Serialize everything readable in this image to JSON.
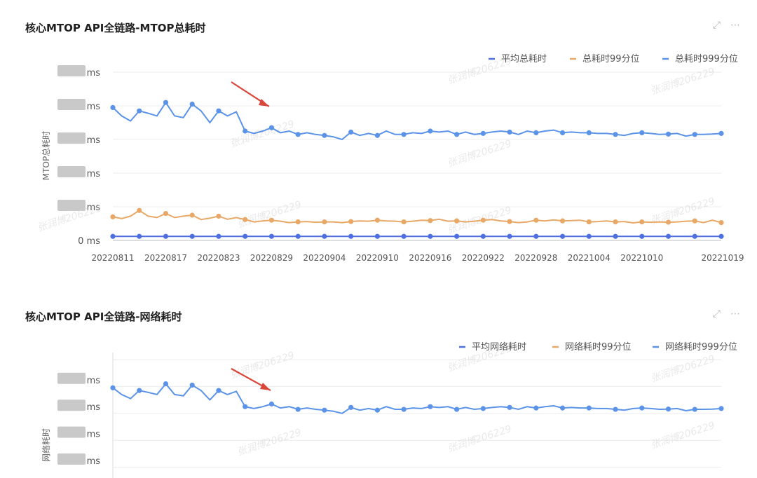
{
  "panels": [
    {
      "title": "核心MTOP API全链路-MTOP总耗时",
      "ylabel": "MTOP总耗时",
      "y_tick_unit": "ms",
      "y_ticks": [
        "0 ms",
        "ms",
        "ms",
        "ms",
        "ms",
        "ms"
      ],
      "expand_icon": "expand-icon",
      "more_icon": "more-icon"
    },
    {
      "title": "核心MTOP API全链路-网络耗时",
      "ylabel": "网络耗时",
      "y_tick_unit": "ms",
      "y_ticks": [
        "ms",
        "ms",
        "ms",
        "ms"
      ],
      "expand_icon": "expand-icon",
      "more_icon": "more-icon"
    }
  ],
  "watermark": "张润博206229",
  "arrow_color": "#d9463a",
  "chart_data": [
    {
      "type": "line",
      "title": "核心MTOP API全链路-MTOP总耗时",
      "ylabel": "MTOP总耗时",
      "xlabel": "",
      "x_tick_labels": [
        "20220811",
        "20220817",
        "20220823",
        "20220829",
        "20220904",
        "20220910",
        "20220916",
        "20220922",
        "20220928",
        "20221004",
        "20221010",
        "20221019"
      ],
      "ylim": [
        0,
        5
      ],
      "y_values_obscured": true,
      "grid": true,
      "legend_position": "top-right",
      "series": [
        {
          "name": "平均总耗时",
          "color": "#4d6fe0",
          "values": [
            0.12,
            0.12,
            0.12,
            0.12,
            0.12,
            0.12,
            0.12,
            0.12,
            0.12,
            0.12,
            0.12,
            0.12,
            0.12,
            0.12,
            0.12,
            0.12,
            0.12,
            0.12,
            0.12,
            0.12,
            0.12,
            0.12,
            0.12,
            0.12,
            0.12,
            0.12,
            0.12,
            0.12,
            0.12,
            0.12,
            0.12,
            0.12,
            0.12,
            0.12,
            0.12,
            0.12,
            0.12,
            0.12,
            0.12,
            0.12,
            0.12,
            0.12,
            0.12,
            0.12,
            0.12,
            0.12,
            0.12,
            0.12,
            0.12,
            0.12,
            0.12,
            0.12,
            0.12,
            0.12,
            0.12,
            0.12,
            0.12,
            0.12,
            0.12,
            0.12,
            0.12,
            0.12,
            0.12,
            0.12,
            0.12,
            0.12,
            0.12,
            0.12,
            0.12,
            0.12
          ]
        },
        {
          "name": "总耗时99分位",
          "color": "#e8a867",
          "values": [
            0.7,
            0.65,
            0.72,
            0.89,
            0.72,
            0.68,
            0.8,
            0.68,
            0.72,
            0.75,
            0.62,
            0.66,
            0.72,
            0.63,
            0.68,
            0.62,
            0.55,
            0.58,
            0.6,
            0.57,
            0.53,
            0.55,
            0.56,
            0.54,
            0.55,
            0.55,
            0.53,
            0.56,
            0.58,
            0.57,
            0.6,
            0.58,
            0.57,
            0.55,
            0.57,
            0.6,
            0.59,
            0.63,
            0.57,
            0.58,
            0.55,
            0.57,
            0.6,
            0.62,
            0.58,
            0.56,
            0.53,
            0.55,
            0.6,
            0.58,
            0.61,
            0.58,
            0.59,
            0.6,
            0.55,
            0.56,
            0.58,
            0.55,
            0.56,
            0.52,
            0.55,
            0.54,
            0.55,
            0.54,
            0.55,
            0.57,
            0.58,
            0.53,
            0.6,
            0.53
          ]
        },
        {
          "name": "总耗时999分位",
          "color": "#5b93e8",
          "values": [
            3.95,
            3.7,
            3.55,
            3.85,
            3.78,
            3.7,
            4.1,
            3.7,
            3.65,
            4.05,
            3.85,
            3.5,
            3.85,
            3.7,
            3.82,
            3.25,
            3.18,
            3.25,
            3.35,
            3.2,
            3.25,
            3.15,
            3.2,
            3.15,
            3.12,
            3.08,
            3.0,
            3.22,
            3.12,
            3.18,
            3.12,
            3.25,
            3.15,
            3.15,
            3.2,
            3.18,
            3.25,
            3.22,
            3.25,
            3.15,
            3.22,
            3.15,
            3.18,
            3.22,
            3.25,
            3.22,
            3.15,
            3.25,
            3.2,
            3.25,
            3.28,
            3.2,
            3.22,
            3.2,
            3.2,
            3.18,
            3.18,
            3.15,
            3.12,
            3.18,
            3.2,
            3.18,
            3.15,
            3.16,
            3.18,
            3.1,
            3.15,
            3.15,
            3.16,
            3.18
          ]
        }
      ]
    },
    {
      "type": "line",
      "title": "核心MTOP API全链路-网络耗时",
      "ylabel": "网络耗时",
      "xlabel": "",
      "ylim": [
        0,
        5
      ],
      "y_values_obscured": true,
      "grid": true,
      "legend_position": "top-right",
      "series": [
        {
          "name": "平均网络耗时",
          "color": "#4d6fe0",
          "values": []
        },
        {
          "name": "网络耗时99分位",
          "color": "#e8a867",
          "values": []
        },
        {
          "name": "网络耗时999分位",
          "color": "#5b93e8",
          "values": [
            3.95,
            3.7,
            3.55,
            3.85,
            3.78,
            3.7,
            4.1,
            3.7,
            3.65,
            4.05,
            3.85,
            3.5,
            3.85,
            3.7,
            3.82,
            3.25,
            3.18,
            3.25,
            3.35,
            3.2,
            3.25,
            3.15,
            3.2,
            3.15,
            3.12,
            3.08,
            3.0,
            3.22,
            3.12,
            3.18,
            3.12,
            3.25,
            3.15,
            3.15,
            3.2,
            3.18,
            3.25,
            3.22,
            3.25,
            3.15,
            3.22,
            3.15,
            3.18,
            3.22,
            3.25,
            3.22,
            3.15,
            3.25,
            3.2,
            3.25,
            3.28,
            3.2,
            3.22,
            3.2,
            3.2,
            3.18,
            3.18,
            3.15,
            3.12,
            3.18,
            3.2,
            3.18,
            3.15,
            3.16,
            3.18,
            3.1,
            3.15,
            3.15,
            3.16,
            3.18
          ]
        }
      ]
    }
  ]
}
